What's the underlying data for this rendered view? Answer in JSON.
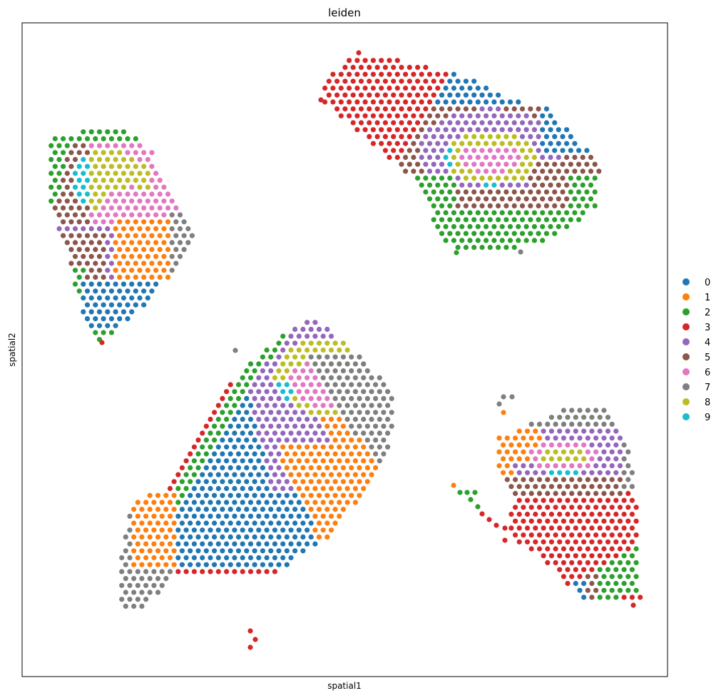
{
  "chart_data": {
    "type": "scatter",
    "title": "leiden",
    "xlabel": "spatial1",
    "ylabel": "spatial2",
    "x_ticks": false,
    "y_ticks": false,
    "grid": false,
    "legend_placement": "right",
    "legend": [
      {
        "name": "0",
        "color": "#1f77b4"
      },
      {
        "name": "1",
        "color": "#ff7f0e"
      },
      {
        "name": "2",
        "color": "#2ca02c"
      },
      {
        "name": "3",
        "color": "#d62728"
      },
      {
        "name": "4",
        "color": "#9467bd"
      },
      {
        "name": "5",
        "color": "#8c564b"
      },
      {
        "name": "6",
        "color": "#e377c2"
      },
      {
        "name": "7",
        "color": "#7f7f7f"
      },
      {
        "name": "8",
        "color": "#bcbd22"
      },
      {
        "name": "9",
        "color": "#17becf"
      }
    ]
  }
}
